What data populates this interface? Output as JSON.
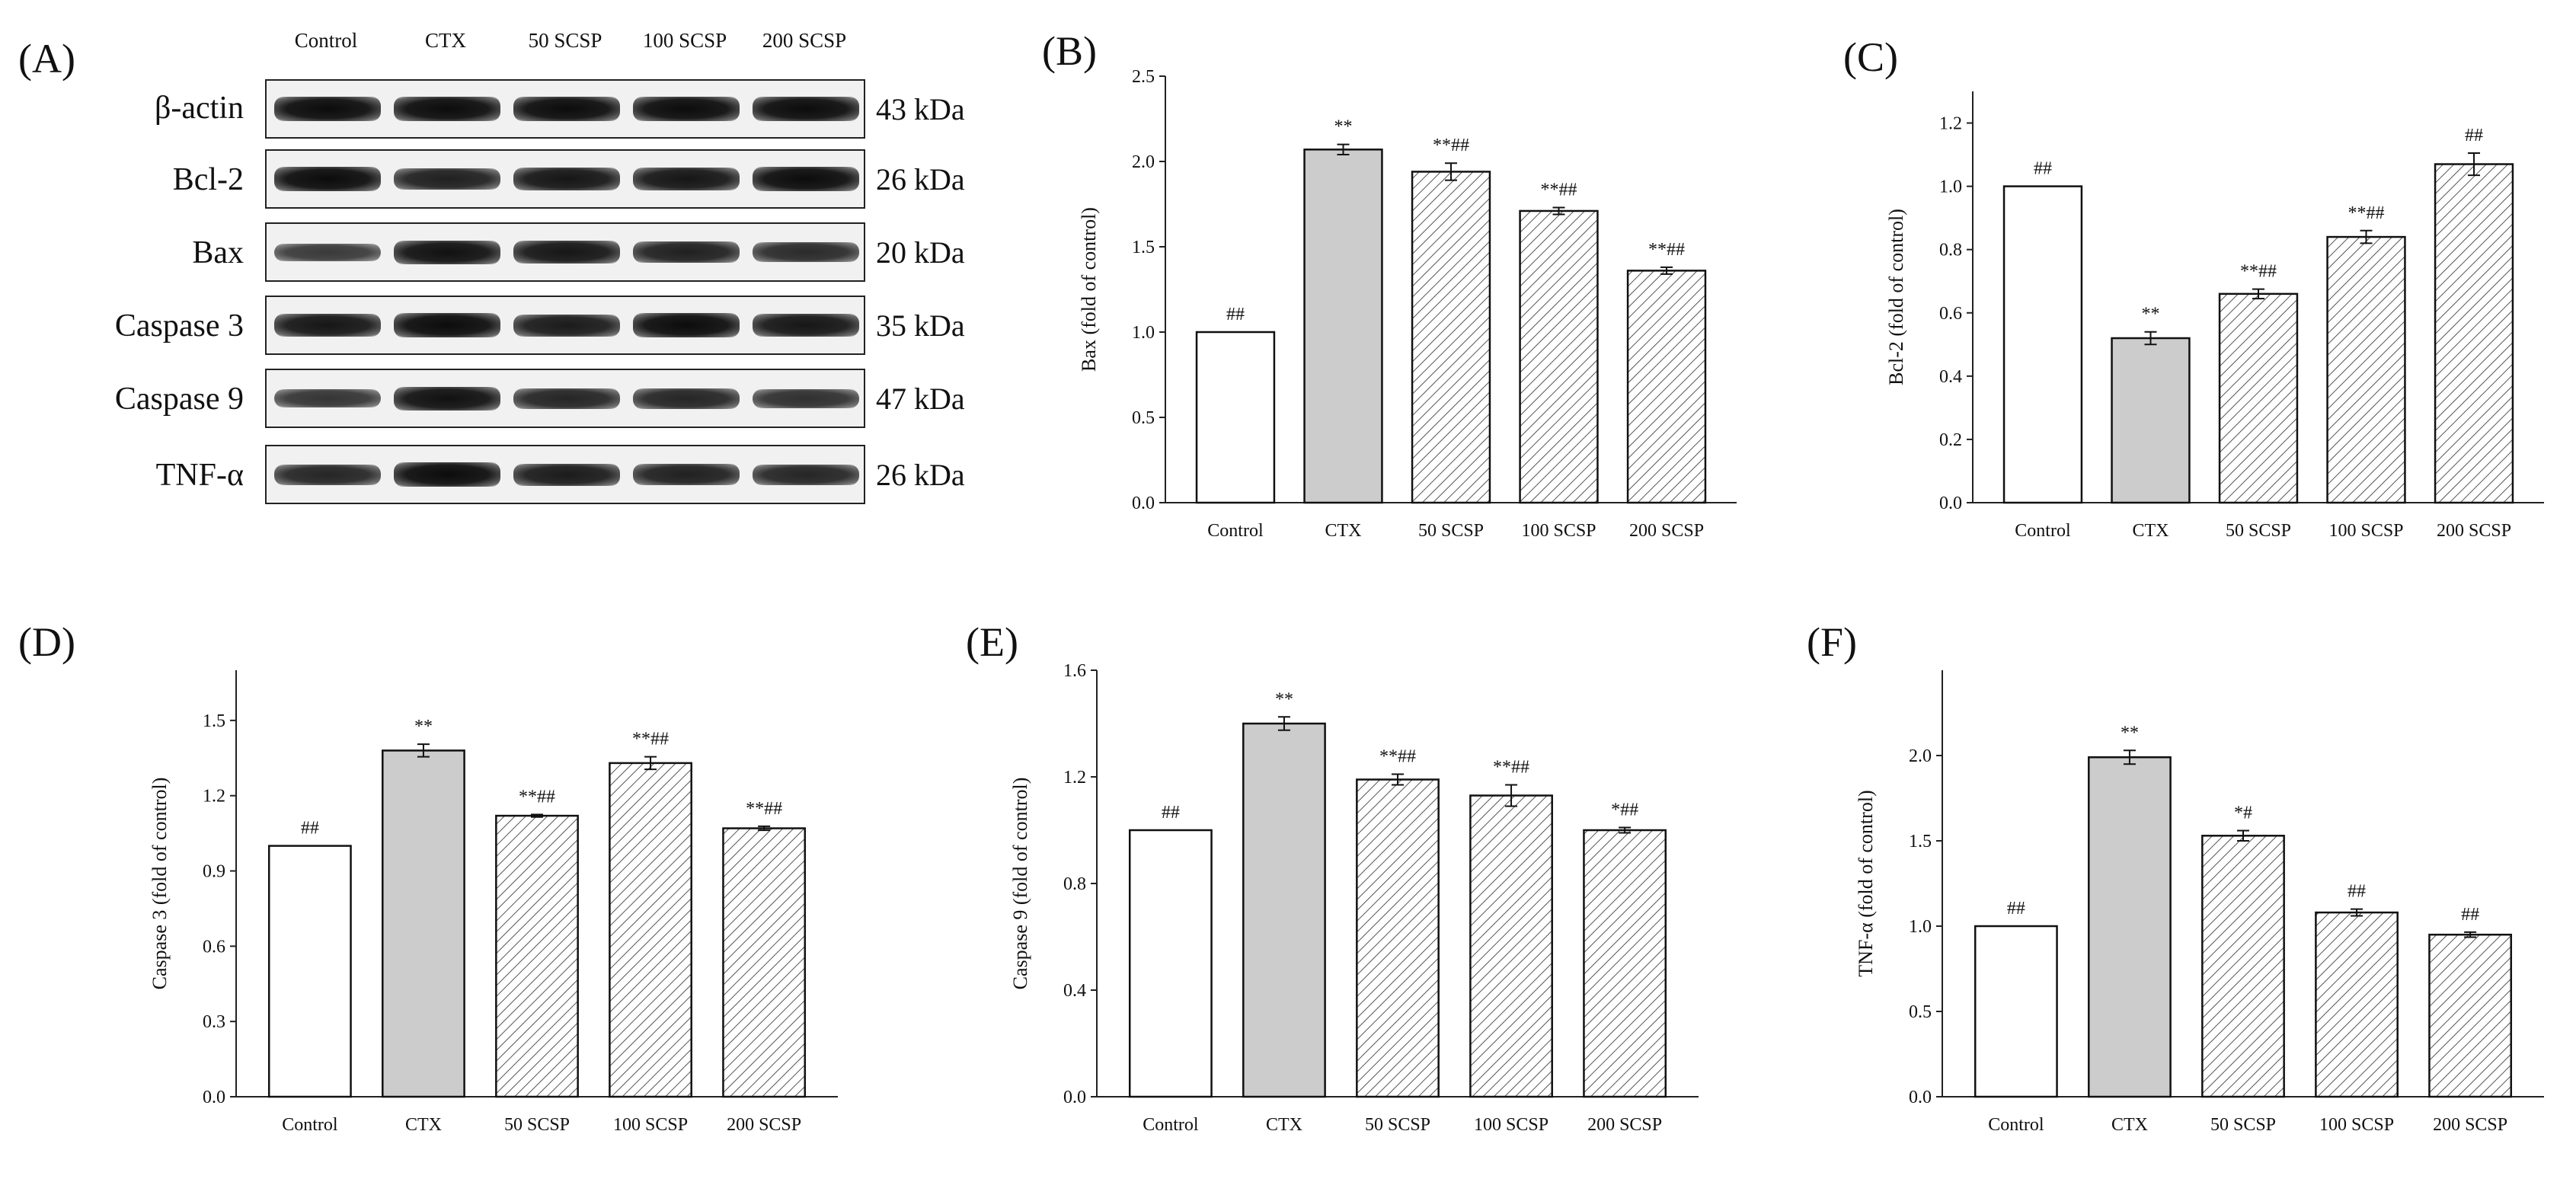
{
  "panel_labels": {
    "a": "(A)",
    "b": "(B)",
    "c": "(C)",
    "d": "(D)",
    "e": "(E)",
    "f": "(F)"
  },
  "blot": {
    "lanes": [
      "Control",
      "CTX",
      "50 SCSP",
      "100 SCSP",
      "200 SCSP"
    ],
    "rows": [
      {
        "label": "β-actin",
        "kda": "43 kDa",
        "intensity": [
          1,
          1,
          1,
          1,
          1
        ]
      },
      {
        "label": "Bcl-2",
        "kda": "26 kDa",
        "intensity": [
          1,
          0.8,
          0.9,
          0.9,
          1
        ]
      },
      {
        "label": "Bax",
        "kda": "20 kDa",
        "intensity": [
          0.55,
          0.95,
          0.9,
          0.8,
          0.7
        ]
      },
      {
        "label": "Caspase 3",
        "kda": "35 kDa",
        "intensity": [
          0.9,
          1,
          0.85,
          1,
          0.9
        ]
      },
      {
        "label": "Caspase 9",
        "kda": "47 kDa",
        "intensity": [
          0.6,
          0.95,
          0.75,
          0.75,
          0.65
        ]
      },
      {
        "label": "TNF-α",
        "kda": "26 kDa",
        "intensity": [
          0.75,
          1,
          0.85,
          0.8,
          0.75
        ]
      }
    ]
  },
  "colors": {
    "control": "#ffffff",
    "ctx": "#cccccc",
    "hatch": "#555555",
    "axis": "#222222"
  },
  "chart_data": [
    {
      "id": "B",
      "type": "bar",
      "categories": [
        "Control",
        "CTX",
        "50 SCSP",
        "100 SCSP",
        "200 SCSP"
      ],
      "values": [
        1.0,
        2.07,
        1.94,
        1.71,
        1.36
      ],
      "errors": [
        0,
        0.03,
        0.05,
        0.02,
        0.02
      ],
      "annotations": [
        "##",
        "**",
        "**##",
        "**##",
        "**##"
      ],
      "fills": [
        "white",
        "gray",
        "hatch",
        "hatch",
        "hatch"
      ],
      "ylabel": "Bax (fold of control)",
      "ylim": [
        0,
        2.5
      ],
      "yticks": [
        "0.0",
        "0.5",
        "1.0",
        "1.5",
        "2.0",
        "2.5"
      ]
    },
    {
      "id": "C",
      "type": "bar",
      "categories": [
        "Control",
        "CTX",
        "50 SCSP",
        "100 SCSP",
        "200 SCSP"
      ],
      "values": [
        1.0,
        0.52,
        0.66,
        0.84,
        1.07
      ],
      "errors": [
        0,
        0.02,
        0.015,
        0.02,
        0.035
      ],
      "annotations": [
        "##",
        "**",
        "**##",
        "**##",
        "##"
      ],
      "fills": [
        "white",
        "gray",
        "hatch",
        "hatch",
        "hatch"
      ],
      "ylabel": "Bcl-2 (fold of control)",
      "ylim": [
        0,
        1.3
      ],
      "yticks": [
        "0.0",
        "0.2",
        "0.4",
        "0.6",
        "0.8",
        "1.0",
        "1.2"
      ]
    },
    {
      "id": "D",
      "type": "bar",
      "categories": [
        "Control",
        "CTX",
        "50 SCSP",
        "100 SCSP",
        "200 SCSP"
      ],
      "values": [
        1.0,
        1.38,
        1.12,
        1.33,
        1.07
      ],
      "errors": [
        0,
        0.025,
        0.005,
        0.025,
        0.008
      ],
      "annotations": [
        "##",
        "**",
        "**##",
        "**##",
        "**##"
      ],
      "fills": [
        "white",
        "gray",
        "hatch",
        "hatch",
        "hatch"
      ],
      "ylabel": "Caspase 3 (fold of control)",
      "ylim": [
        0,
        1.7
      ],
      "yticks": [
        "0.0",
        "0.3",
        "0.6",
        "0.9",
        "1.2",
        "1.5"
      ]
    },
    {
      "id": "E",
      "type": "bar",
      "categories": [
        "Control",
        "CTX",
        "50 SCSP",
        "100 SCSP",
        "200 SCSP"
      ],
      "values": [
        1.0,
        1.4,
        1.19,
        1.13,
        1.0
      ],
      "errors": [
        0,
        0.025,
        0.02,
        0.04,
        0.01
      ],
      "annotations": [
        "##",
        "**",
        "**##",
        "**##",
        "*##"
      ],
      "fills": [
        "white",
        "gray",
        "hatch",
        "hatch",
        "hatch"
      ],
      "ylabel": "Caspase 9 (fold of control)",
      "ylim": [
        0,
        1.6
      ],
      "yticks": [
        "0.0",
        "0.4",
        "0.8",
        "1.2",
        "1.6"
      ]
    },
    {
      "id": "F",
      "type": "bar",
      "categories": [
        "Control",
        "CTX",
        "50 SCSP",
        "100 SCSP",
        "200 SCSP"
      ],
      "values": [
        1.0,
        1.99,
        1.53,
        1.08,
        0.95
      ],
      "errors": [
        0,
        0.04,
        0.03,
        0.02,
        0.015
      ],
      "annotations": [
        "##",
        "**",
        "*#",
        "##",
        "##"
      ],
      "fills": [
        "white",
        "gray",
        "hatch",
        "hatch",
        "hatch"
      ],
      "ylabel": "TNF-α (fold of control)",
      "ylim": [
        0,
        2.5
      ],
      "yticks": [
        "0.0",
        "0.5",
        "1.0",
        "1.5",
        "2.0"
      ]
    }
  ]
}
